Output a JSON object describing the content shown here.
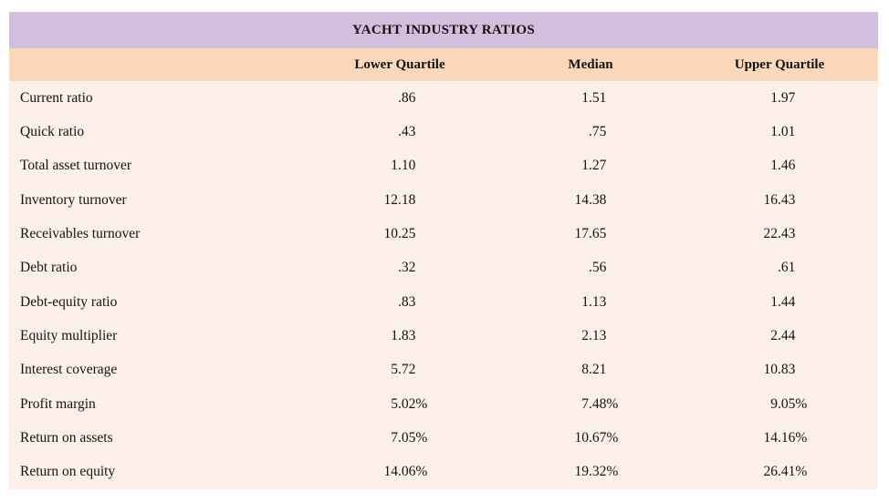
{
  "chart_data": {
    "type": "table",
    "title": "YACHT INDUSTRY RATIOS",
    "columns": [
      "Lower Quartile",
      "Median",
      "Upper Quartile"
    ],
    "rows": [
      {
        "label": "Current ratio",
        "values": [
          ".86",
          "1.51",
          "1.97"
        ]
      },
      {
        "label": "Quick ratio",
        "values": [
          ".43",
          ".75",
          "1.01"
        ]
      },
      {
        "label": "Total asset turnover",
        "values": [
          "1.10",
          "1.27",
          "1.46"
        ]
      },
      {
        "label": "Inventory turnover",
        "values": [
          "12.18",
          "14.38",
          "16.43"
        ]
      },
      {
        "label": "Receivables turnover",
        "values": [
          "10.25",
          "17.65",
          "22.43"
        ]
      },
      {
        "label": "Debt ratio",
        "values": [
          ".32",
          ".56",
          ".61"
        ]
      },
      {
        "label": "Debt-equity ratio",
        "values": [
          ".83",
          "1.13",
          "1.44"
        ]
      },
      {
        "label": "Equity multiplier",
        "values": [
          "1.83",
          "2.13",
          "2.44"
        ]
      },
      {
        "label": "Interest coverage",
        "values": [
          "5.72",
          "8.21",
          "10.83"
        ]
      },
      {
        "label": "Profit margin",
        "values": [
          "5.02%",
          "7.48%",
          "9.05%"
        ]
      },
      {
        "label": "Return on assets",
        "values": [
          "7.05%",
          "10.67%",
          "14.16%"
        ]
      },
      {
        "label": "Return on equity",
        "values": [
          "14.06%",
          "19.32%",
          "26.41%"
        ]
      }
    ],
    "layout": {
      "legend": "none",
      "grid": "off",
      "title_band_color": "#d4bede",
      "header_band_color": "#fcd8ba",
      "body_band_color": "#fdf0ea",
      "text_color": "#131313"
    }
  }
}
